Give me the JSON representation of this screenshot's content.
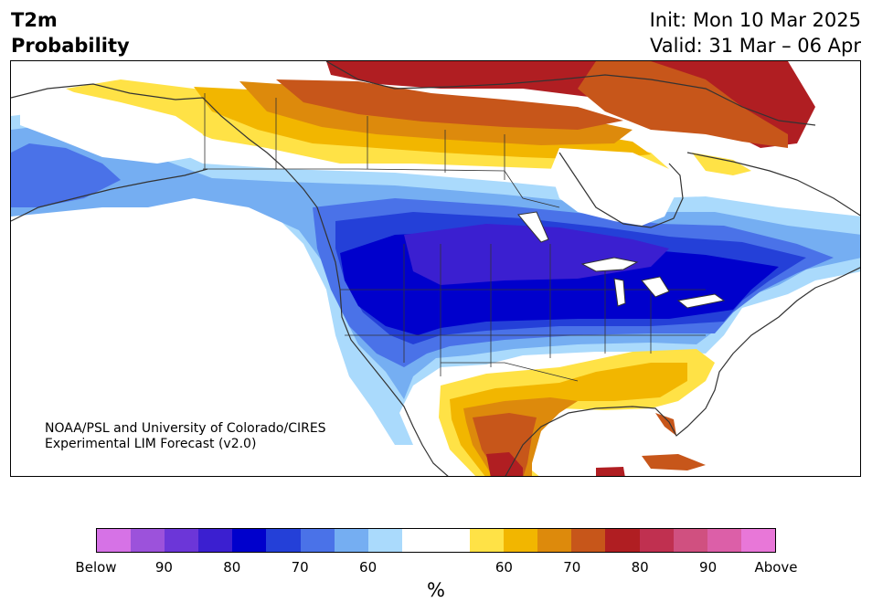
{
  "title": {
    "line1": "T2m",
    "line2": "Probability"
  },
  "init": {
    "line1": "Init: Mon 10 Mar 2025",
    "line2": "Valid: 31 Mar – 06 Apr"
  },
  "credit": {
    "line1": "NOAA/PSL and University of Colorado/CIRES",
    "line2": "Experimental LIM Forecast (v2.0)"
  },
  "map": {
    "region": "North America",
    "variable": "2-meter temperature probability"
  },
  "colorbar": {
    "colors": [
      "#d672e6",
      "#9c52db",
      "#6c36d8",
      "#3b1fd0",
      "#0000cc",
      "#2440d8",
      "#4a72e8",
      "#75aef2",
      "#aadafc",
      "#ffffff",
      "#ffffff",
      "#ffe246",
      "#f2b600",
      "#dd8a0c",
      "#c7561a",
      "#b01e22",
      "#c03050",
      "#d05080",
      "#dc5fa8",
      "#e877d8"
    ],
    "labels": [
      "Below",
      "90",
      "80",
      "70",
      "60",
      "60",
      "70",
      "80",
      "90",
      "Above"
    ],
    "unit": "%"
  }
}
